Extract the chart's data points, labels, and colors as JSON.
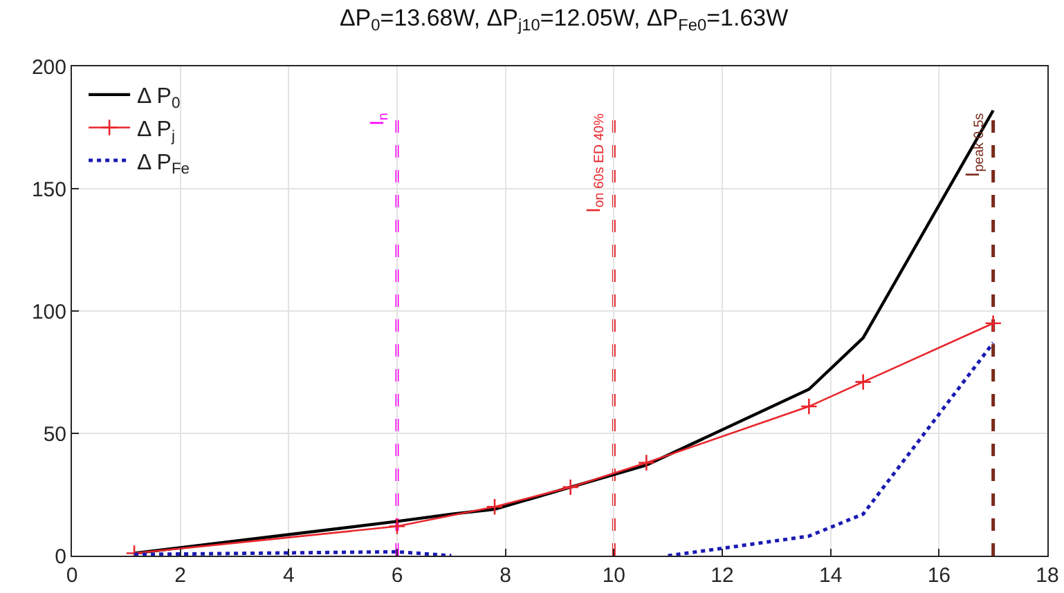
{
  "chart_data": {
    "type": "line",
    "title": "ΔP$_{0}$=13.68W, ΔP$_{j10}$=12.05W, ΔP$_{Fe0}$=1.63W",
    "xlim": [
      0,
      18
    ],
    "xticks": [
      0,
      2,
      4,
      6,
      8,
      10,
      12,
      14,
      16,
      18
    ],
    "ylim": [
      0,
      200
    ],
    "yticks": [
      0,
      50,
      100,
      150,
      200
    ],
    "grid": true,
    "legend": "top left",
    "series": [
      {
        "name": "Δ P$_{0}$",
        "color": "#000000",
        "line_style": "solid",
        "marker": "none",
        "x": [
          1.15,
          6,
          7,
          7.8,
          9.2,
          10.6,
          13.6,
          14.6,
          17
        ],
        "values": [
          1,
          14,
          17,
          19,
          28,
          37,
          68,
          89,
          182
        ]
      },
      {
        "name": "Δ P$_{j}$",
        "color": "#e8262c",
        "line_style": "solid",
        "marker": "cross",
        "x": [
          1.15,
          6,
          7.8,
          9.2,
          10.6,
          13.6,
          14.6,
          17
        ],
        "values": [
          1,
          12,
          20,
          28,
          38,
          61,
          71,
          95
        ]
      },
      {
        "name": "Δ P$_{Fe}$",
        "color": "#1a1ab4",
        "line_style": "dotted",
        "marker": "none",
        "x": [
          1.15,
          6,
          7,
          9,
          11,
          12,
          13.6,
          14.6,
          17
        ],
        "values": [
          0.5,
          1.6,
          0,
          null,
          0,
          3,
          8,
          17,
          87
        ]
      }
    ],
    "ref_lines": [
      {
        "axis": "x",
        "value": 6,
        "label": "I$_{n}$",
        "color": "#ff00ff",
        "line_style": "dashed"
      },
      {
        "axis": "x",
        "value": 10,
        "label": "I$_{on 60s ED 40%}$",
        "color": "#e8262c",
        "line_style": "dashed"
      },
      {
        "axis": "x",
        "value": 17,
        "label": "I$_{peak 0.5s}$",
        "color": "#7a2a1a",
        "line_style": "dashed"
      }
    ]
  }
}
